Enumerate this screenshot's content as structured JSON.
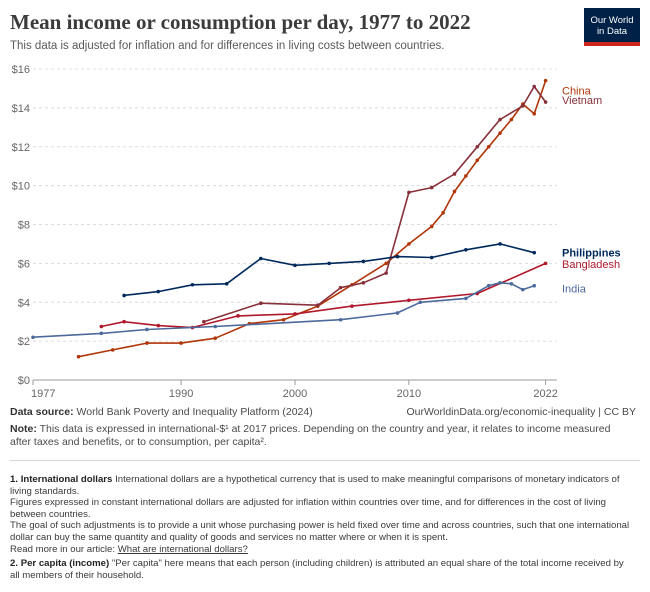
{
  "header": {
    "title": "Mean income or consumption per day, 1977 to 2022",
    "subtitle": "This data is adjusted for inflation and for differences in living costs between countries.",
    "logo_line1": "Our World",
    "logo_line2": "in Data"
  },
  "footer": {
    "source_label": "Data source:",
    "source_text": "World Bank Poverty and Inequality Platform (2024)",
    "credit": "OurWorldinData.org/economic-inequality | CC BY",
    "note_label": "Note:",
    "note_text": "This data is expressed in international-$¹ at 2017 prices. Depending on the country and year, it relates to income measured after taxes and benefits, or to consumption, per capita².",
    "fn1_num": "1.",
    "fn1_title": "International dollars",
    "fn1_text": "International dollars are a hypothetical currency that is used to make meaningful comparisons of monetary indicators of living standards.",
    "fn1_p2": "Figures expressed in constant international dollars are adjusted for inflation within countries over time, and for differences in the cost of living between countries.",
    "fn1_p3": "The goal of such adjustments is to provide a unit whose purchasing power is held fixed over time and across countries, such that one international dollar can buy the same quantity and quality of goods and services no matter where or when it is spent.",
    "fn1_more": "Read more in our article:",
    "fn1_link": "What are international dollars?",
    "fn2_num": "2.",
    "fn2_title": "Per capita (income)",
    "fn2_text": "\"Per capita\" here means that each person (including children) is attributed an equal share of the total income received by all members of their household."
  },
  "chart_data": {
    "type": "line",
    "title": "Mean income or consumption per day, 1977 to 2022",
    "xlim": [
      1977,
      2023
    ],
    "ylim": [
      0,
      16
    ],
    "x_ticks": [
      1977,
      1990,
      2000,
      2010,
      2022
    ],
    "x_tick_labels": [
      "1977",
      "1990",
      "2000",
      "2010",
      "2022"
    ],
    "y_ticks": [
      0,
      2,
      4,
      6,
      8,
      10,
      12,
      14,
      16
    ],
    "y_tick_labels": [
      "$0",
      "$2",
      "$4",
      "$6",
      "$8",
      "$10",
      "$12",
      "$14",
      "$16"
    ],
    "grid": "horizontal dotted",
    "legend": "line-end labels at right",
    "series": [
      {
        "name": "China",
        "color": "#b13507",
        "x": [
          1981,
          1984,
          1987,
          1990,
          1993,
          1996,
          1999,
          2002,
          2005,
          2008,
          2010,
          2012,
          2013,
          2014,
          2015,
          2016,
          2017,
          2018,
          2019,
          2020,
          2021,
          2022
        ],
        "y": [
          1.2,
          1.55,
          1.9,
          1.9,
          2.15,
          2.9,
          3.1,
          3.8,
          4.9,
          6.0,
          7.0,
          7.9,
          8.6,
          9.7,
          10.5,
          11.3,
          12.0,
          12.7,
          13.4,
          14.2,
          13.7,
          15.4
        ]
      },
      {
        "name": "Vietnam",
        "color": "#883039",
        "x": [
          1992,
          1997,
          2002,
          2004,
          2006,
          2008,
          2010,
          2012,
          2014,
          2016,
          2018,
          2020,
          2021,
          2022
        ],
        "y": [
          3.0,
          3.95,
          3.85,
          4.75,
          5.0,
          5.5,
          9.65,
          9.9,
          10.6,
          12.0,
          13.4,
          14.1,
          15.1,
          14.3
        ]
      },
      {
        "name": "Philippines",
        "color": "#00295b",
        "x": [
          1985,
          1988,
          1991,
          1994,
          1997,
          2000,
          2003,
          2006,
          2009,
          2012,
          2015,
          2018,
          2021
        ],
        "y": [
          4.35,
          4.55,
          4.9,
          4.95,
          6.25,
          5.9,
          6.0,
          6.1,
          6.35,
          6.3,
          6.7,
          7.0,
          6.55
        ]
      },
      {
        "name": "Bangladesh",
        "color": "#b0182b",
        "x": [
          1983,
          1985,
          1988,
          1991,
          1995,
          2000,
          2005,
          2010,
          2016,
          2022
        ],
        "y": [
          2.75,
          3.0,
          2.8,
          2.7,
          3.3,
          3.4,
          3.8,
          4.1,
          4.45,
          6.0
        ]
      },
      {
        "name": "India",
        "color": "#4c6a9c",
        "x": [
          1977,
          1983,
          1987,
          1993,
          2004,
          2009,
          2011,
          2015,
          2017,
          2018,
          2019,
          2020,
          2021
        ],
        "y": [
          2.2,
          2.4,
          2.6,
          2.75,
          3.1,
          3.45,
          4.0,
          4.2,
          4.85,
          5.0,
          4.95,
          4.65,
          4.85
        ]
      }
    ]
  }
}
